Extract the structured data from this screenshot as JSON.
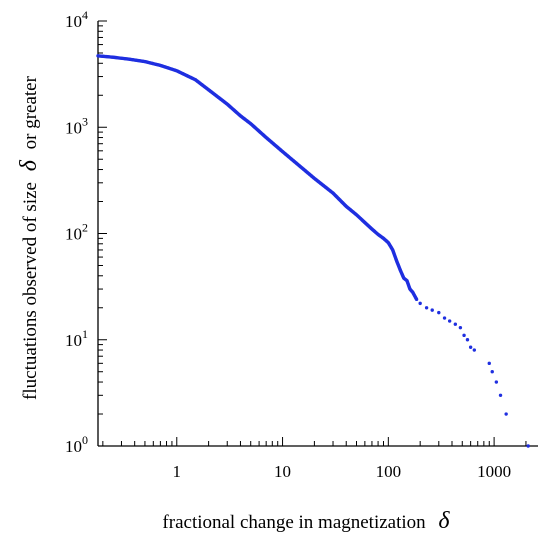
{
  "chart_data": {
    "type": "scatter",
    "xlabel": "fractional change in magnetization",
    "xlabel_symbol": "δ",
    "ylabel_prefix": "fluctuations observed of size",
    "ylabel_symbol": "δ",
    "ylabel_suffix": "or greater",
    "x_scale": "log",
    "y_scale": "log",
    "xlim": [
      0.18,
      2600
    ],
    "ylim": [
      1,
      10000
    ],
    "x_ticks": [
      {
        "value": 1,
        "label": "1"
      },
      {
        "value": 10,
        "label": "10"
      },
      {
        "value": 100,
        "label": "100"
      },
      {
        "value": 1000,
        "label": "1000"
      }
    ],
    "y_ticks": [
      {
        "value": 1,
        "base": "10",
        "exp": "0"
      },
      {
        "value": 10,
        "base": "10",
        "exp": "1"
      },
      {
        "value": 100,
        "base": "10",
        "exp": "2"
      },
      {
        "value": 1000,
        "base": "10",
        "exp": "3"
      },
      {
        "value": 10000,
        "base": "10",
        "exp": "4"
      }
    ],
    "grid": false,
    "marker_color": "#1f2fe0",
    "series": [
      {
        "points": [
          [
            0.18,
            4700
          ],
          [
            0.25,
            4560
          ],
          [
            0.35,
            4380
          ],
          [
            0.5,
            4150
          ],
          [
            0.7,
            3820
          ],
          [
            1.0,
            3400
          ],
          [
            1.5,
            2800
          ],
          [
            2.0,
            2250
          ],
          [
            3.0,
            1650
          ],
          [
            4.0,
            1280
          ],
          [
            5.0,
            1080
          ],
          [
            7.0,
            800
          ],
          [
            10.0,
            590
          ],
          [
            15.0,
            420
          ],
          [
            20.0,
            330
          ],
          [
            30.0,
            240
          ],
          [
            40.0,
            180
          ],
          [
            50.0,
            150
          ],
          [
            70.0,
            110
          ],
          [
            80.0,
            98
          ],
          [
            90.0,
            90
          ],
          [
            100.0,
            82
          ],
          [
            110.0,
            70
          ],
          [
            120.0,
            55
          ],
          [
            130.0,
            45
          ],
          [
            140.0,
            38
          ],
          [
            150.0,
            36
          ],
          [
            160.0,
            30
          ],
          [
            170.0,
            28
          ],
          [
            185.0,
            24
          ],
          [
            200.0,
            22
          ],
          [
            230.0,
            20
          ],
          [
            260.0,
            19
          ],
          [
            300.0,
            18
          ],
          [
            340.0,
            16
          ],
          [
            380.0,
            15
          ],
          [
            430.0,
            14
          ],
          [
            480.0,
            13
          ],
          [
            520.0,
            11
          ],
          [
            560.0,
            10
          ],
          [
            600.0,
            8.5
          ],
          [
            650.0,
            8
          ],
          [
            900.0,
            6
          ],
          [
            960.0,
            5
          ],
          [
            1050.0,
            4
          ],
          [
            1150.0,
            3
          ],
          [
            1300.0,
            2
          ],
          [
            2100.0,
            1
          ]
        ]
      }
    ]
  }
}
